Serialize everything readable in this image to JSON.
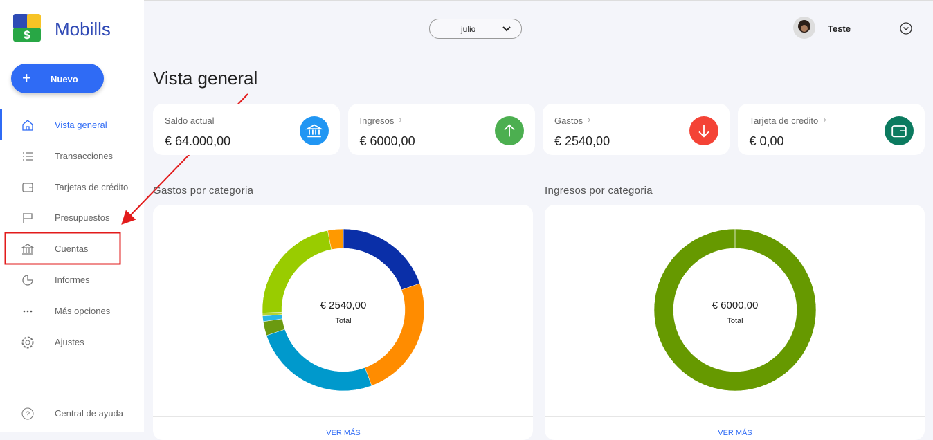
{
  "sidebar": {
    "brand": "Mobills",
    "new_button": "Nuevo",
    "nav": [
      "Vista general",
      "Transacciones",
      "Tarjetas de crédito",
      "Presupuestos",
      "Cuentas",
      "Informes",
      "Más opciones",
      "Ajustes"
    ],
    "help": "Central de ayuda"
  },
  "topbar": {
    "month": "julio",
    "user": "Teste"
  },
  "page_title": "Vista general",
  "cards": [
    {
      "label": "Saldo actual",
      "value": "€ 64.000,00",
      "color": "#2196f3"
    },
    {
      "label": "Ingresos",
      "value": "€ 6000,00",
      "color": "#4caf50"
    },
    {
      "label": "Gastos",
      "value": "€ 2540,00",
      "color": "#f44336"
    },
    {
      "label": "Tarjeta de credito",
      "value": "€ 0,00",
      "color": "#0b7a5f"
    }
  ],
  "donuts": [
    {
      "title": "Gastos por categoria",
      "total": "€ 2540,00",
      "total_label": "Total",
      "link": "VER MÁS",
      "segments": [
        {
          "color": "#0a2fa8",
          "value": 19.7
        },
        {
          "color": "#ff8c00",
          "value": 24.6
        },
        {
          "color": "#0099cc",
          "value": 25.6
        },
        {
          "color": "#6b9a10",
          "value": 2.8
        },
        {
          "color": "#29b6e6",
          "value": 1.1
        },
        {
          "color": "#b5d334",
          "value": 0.6
        },
        {
          "color": "#99cc00",
          "value": 22.5
        },
        {
          "color": "#ff9900",
          "value": 3.1
        }
      ]
    },
    {
      "title": "Ingresos por categoria",
      "total": "€ 6000,00",
      "total_label": "Total",
      "link": "VER MÁS",
      "segments": [
        {
          "color": "#669900",
          "value": 100
        }
      ]
    }
  ]
}
